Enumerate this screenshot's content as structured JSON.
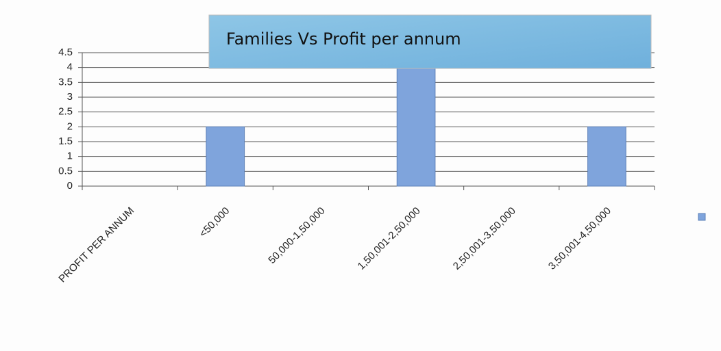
{
  "chart_data": {
    "type": "bar",
    "title": "Families Vs Profit per annum",
    "categories": [
      "PROFIT PER ANNUM",
      "<50,000",
      "50,000-1,50,000",
      "1,50,001-2,50,000",
      "2,50,001-3,50,000",
      "3,50,001-4,50,000"
    ],
    "values": [
      null,
      2,
      0,
      4,
      0,
      2
    ],
    "color": "#7fa4dc",
    "ylim": [
      0,
      4.5
    ],
    "yticks": [
      0,
      0.5,
      1,
      1.5,
      2,
      2.5,
      3,
      3.5,
      4,
      4.5
    ],
    "grid": true
  }
}
